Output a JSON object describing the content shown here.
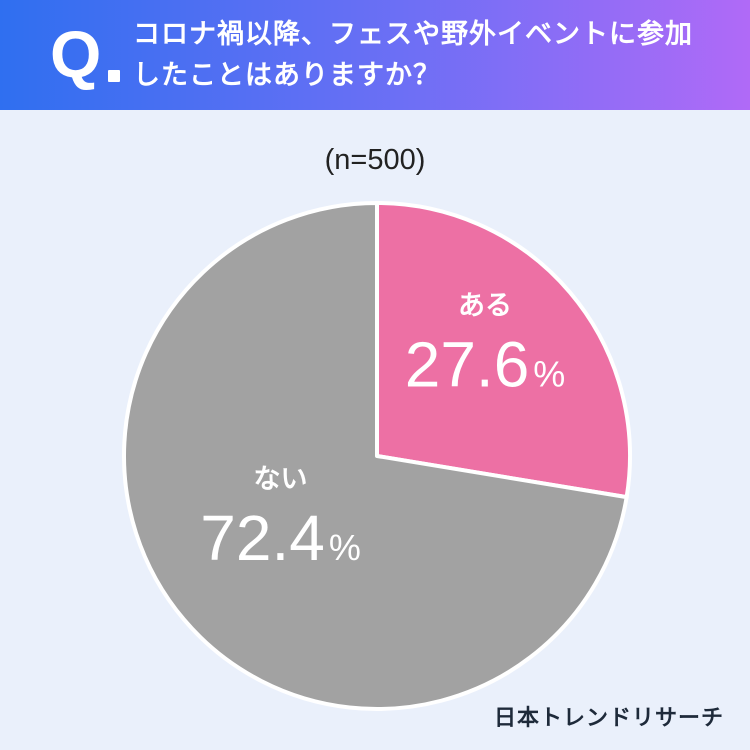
{
  "header": {
    "q_label": "Q",
    "question_line1": "コロナ禍以降、フェスや野外イベントに参加",
    "question_line2": "したことはありますか？"
  },
  "colors": {
    "slice_yes": "#ed70a4",
    "slice_no": "#a2a2a2",
    "background": "#eaf0fb"
  },
  "chart_data": {
    "type": "pie",
    "sample_size_label": "(n=500)",
    "slices": [
      {
        "label": "ある",
        "value": 27.6,
        "value_label": "27.6",
        "unit": "%"
      },
      {
        "label": "ない",
        "value": 72.4,
        "value_label": "72.4",
        "unit": "%"
      }
    ]
  },
  "footer": {
    "brand": "日本トレンドリサーチ"
  }
}
